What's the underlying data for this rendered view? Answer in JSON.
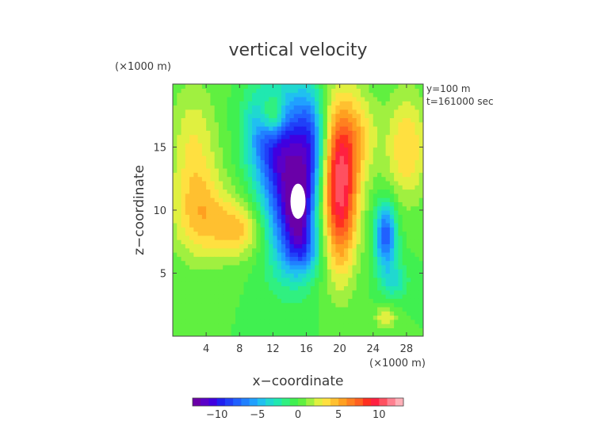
{
  "chart_data": {
    "type": "heatmap",
    "title": "vertical velocity",
    "xlabel": "x−coordinate",
    "ylabel": "z−coordinate",
    "x_unit": "(×1000 m)",
    "y_unit": "(×1000 m)",
    "annotations": [
      "y=100 m",
      "t=161000 sec"
    ],
    "xlim": [
      0,
      30
    ],
    "ylim": [
      0,
      20
    ],
    "xticks": [
      4,
      8,
      12,
      16,
      20,
      24,
      28
    ],
    "yticks": [
      5,
      10,
      15
    ],
    "grid": false,
    "field_features": [
      {
        "kind": "gaussian",
        "x": 14.0,
        "z": 12.5,
        "sx": 2.2,
        "sz": 4.5,
        "amp": -11
      },
      {
        "kind": "gaussian",
        "x": 11.0,
        "z": 16.0,
        "sx": 1.8,
        "sz": 2.5,
        "amp": -5
      },
      {
        "kind": "gaussian",
        "x": 15.0,
        "z": 10.5,
        "sx": 1.0,
        "sz": 1.8,
        "amp": -6
      },
      {
        "kind": "gaussian",
        "x": 16.5,
        "z": 15.5,
        "sx": 1.2,
        "sz": 3.0,
        "amp": -5
      },
      {
        "kind": "gaussian",
        "x": 15.5,
        "z": 7.0,
        "sx": 1.5,
        "sz": 1.5,
        "amp": -5
      },
      {
        "kind": "gaussian",
        "x": 20.0,
        "z": 12.0,
        "sx": 1.5,
        "sz": 4.5,
        "amp": 11
      },
      {
        "kind": "gaussian",
        "x": 22.5,
        "z": 16.0,
        "sx": 1.5,
        "sz": 2.5,
        "amp": 3
      },
      {
        "kind": "gaussian",
        "x": 28.0,
        "z": 15.0,
        "sx": 1.8,
        "sz": 3.0,
        "amp": 4
      },
      {
        "kind": "gaussian",
        "x": 25.5,
        "z": 8.0,
        "sx": 0.9,
        "sz": 1.8,
        "amp": -8
      },
      {
        "kind": "gaussian",
        "x": 3.5,
        "z": 9.5,
        "sx": 2.5,
        "sz": 2.5,
        "amp": 4
      },
      {
        "kind": "gaussian",
        "x": 8.0,
        "z": 8.5,
        "sx": 2.0,
        "sz": 1.5,
        "amp": 4
      },
      {
        "kind": "gaussian",
        "x": 2.5,
        "z": 15.0,
        "sx": 2.0,
        "sz": 3.5,
        "amp": 3
      },
      {
        "kind": "gaussian",
        "x": 12.0,
        "z": 17.5,
        "sx": 1.0,
        "sz": 1.2,
        "amp": 6
      },
      {
        "kind": "gaussian",
        "x": 25.5,
        "z": 1.5,
        "sx": 0.9,
        "sz": 0.6,
        "amp": 3
      },
      {
        "kind": "gaussian",
        "x": 26.5,
        "z": 4.5,
        "sx": 1.2,
        "sz": 1.0,
        "amp": -3
      }
    ],
    "white_region": {
      "x": 15.0,
      "z": 10.7,
      "rx": 0.9,
      "rz": 1.4
    },
    "colorbar": {
      "min": -13,
      "max": 13,
      "levels": 26,
      "tick_values": [
        -10,
        -5,
        0,
        5,
        10
      ],
      "tick_labels": [
        "−10",
        "−5",
        "0",
        "5",
        "10"
      ],
      "colors": [
        "#6a00a8",
        "#5a00c8",
        "#4000e0",
        "#2020f0",
        "#2040f8",
        "#2060ff",
        "#2080ff",
        "#20a0ff",
        "#20c0f0",
        "#20d8d0",
        "#20e8b0",
        "#30f080",
        "#40f050",
        "#60f040",
        "#a0f040",
        "#e0f040",
        "#ffe040",
        "#ffc030",
        "#ffa020",
        "#ff8020",
        "#ff6020",
        "#ff3020",
        "#ff2040",
        "#ff5060",
        "#ff8090",
        "#ffb0b8"
      ]
    }
  }
}
